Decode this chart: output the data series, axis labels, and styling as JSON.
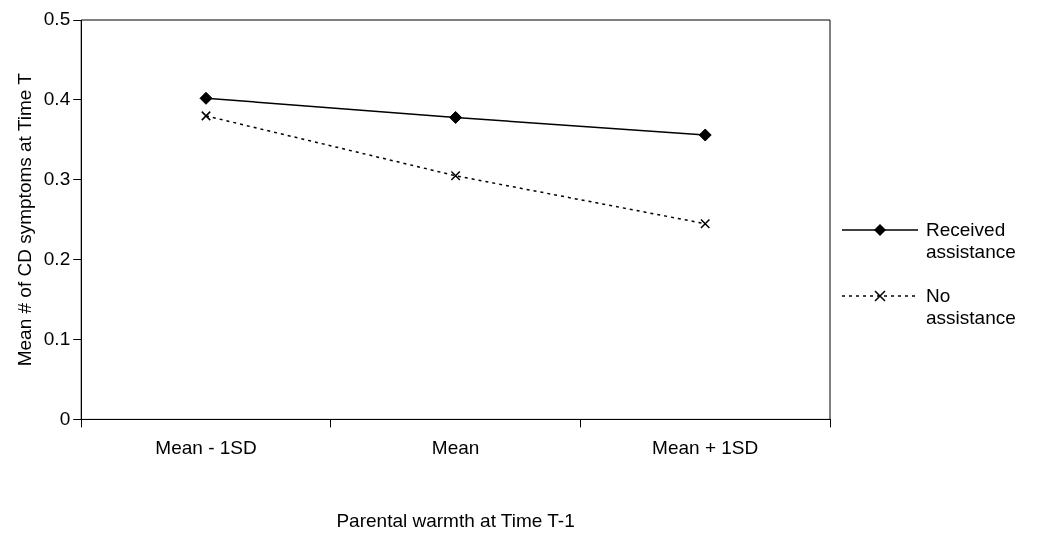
{
  "chart_data": {
    "type": "line",
    "xlabel": "Parental warmth at Time T-1",
    "ylabel": "Mean # of CD symptoms at Time T",
    "categories": [
      "Mean - 1SD",
      "Mean",
      "Mean + 1SD"
    ],
    "series": [
      {
        "name": "Received assistance",
        "color": "#000000",
        "values": [
          0.402,
          0.378,
          0.356
        ],
        "marker": "diamond",
        "line_style": "solid"
      },
      {
        "name": "No assistance",
        "color": "#000000",
        "values": [
          0.38,
          0.305,
          0.245
        ],
        "marker": "cross",
        "line_style": "dotted"
      }
    ],
    "ylim": [
      0,
      0.5
    ],
    "yticks": [
      0,
      0.1,
      0.2,
      0.3,
      0.4,
      0.5
    ],
    "grid": false,
    "legend": "right"
  }
}
